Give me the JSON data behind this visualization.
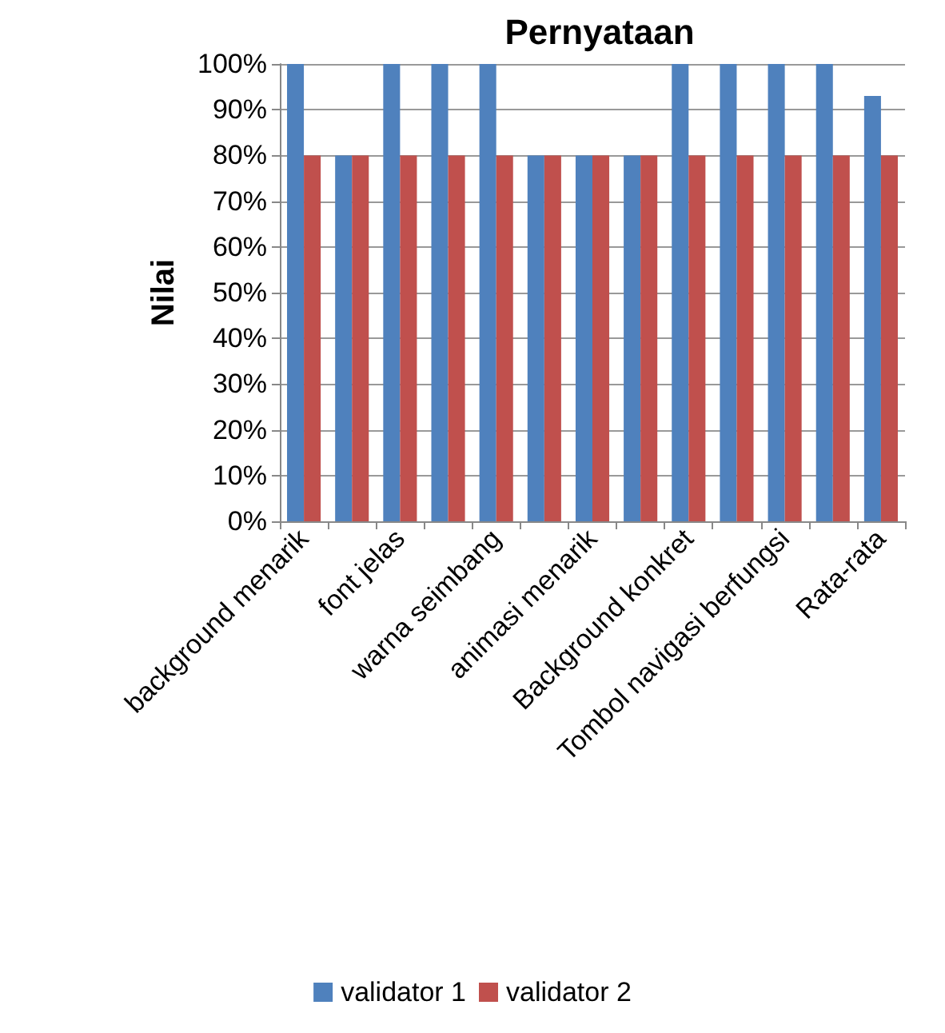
{
  "chart_data": {
    "type": "bar",
    "title": "Pernyataan",
    "ylabel": "Nilai",
    "categories": [
      "background menarik",
      null,
      "font jelas",
      null,
      "warna seimbang",
      null,
      "animasi menarik",
      null,
      "Background konkret",
      null,
      "Tombol navigasi berfungsi",
      null,
      "Rata-rata"
    ],
    "series": [
      {
        "name": "validator 1",
        "color": "#4f81bd",
        "values": [
          100,
          80,
          100,
          100,
          100,
          80,
          80,
          80,
          100,
          100,
          100,
          100,
          93
        ]
      },
      {
        "name": "validator 2",
        "color": "#c0504d",
        "values": [
          80,
          80,
          80,
          80,
          80,
          80,
          80,
          80,
          80,
          80,
          80,
          80,
          80
        ]
      }
    ],
    "ylim": [
      0,
      100
    ],
    "yticks": [
      {
        "value": 0,
        "label": "0%"
      },
      {
        "value": 10,
        "label": "10%"
      },
      {
        "value": 20,
        "label": "20%"
      },
      {
        "value": 30,
        "label": "30%"
      },
      {
        "value": 40,
        "label": "40%"
      },
      {
        "value": 50,
        "label": "50%"
      },
      {
        "value": 60,
        "label": "60%"
      },
      {
        "value": 70,
        "label": "70%"
      },
      {
        "value": 80,
        "label": "80%"
      },
      {
        "value": 90,
        "label": "90%"
      },
      {
        "value": 100,
        "label": "100%"
      }
    ],
    "grid": "y",
    "legend": "bottom"
  }
}
